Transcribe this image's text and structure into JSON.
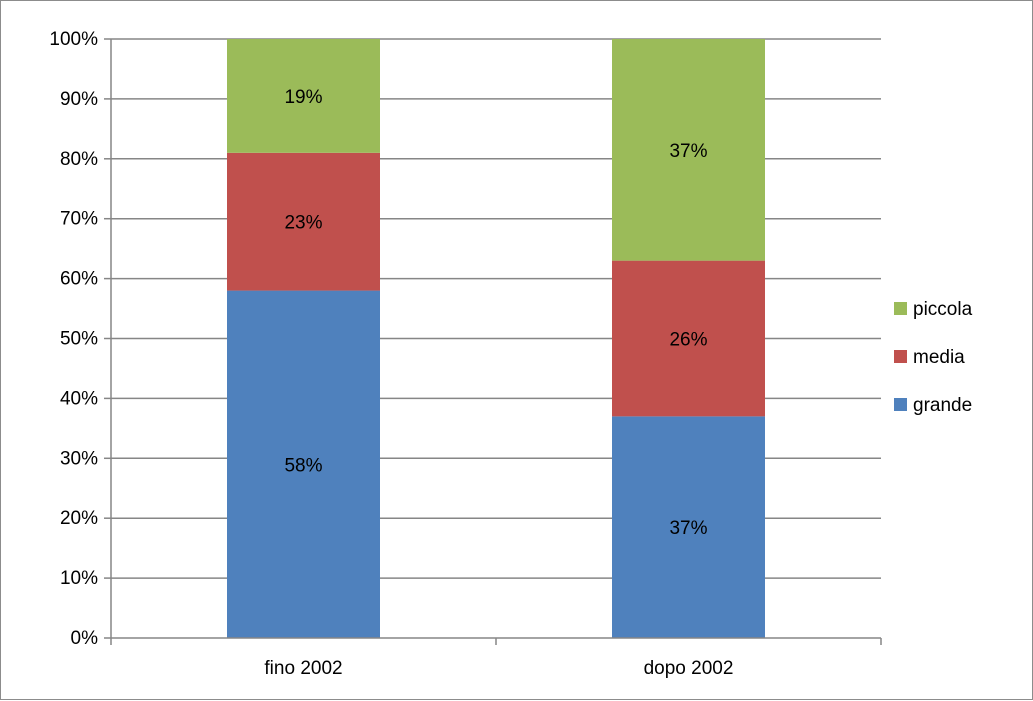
{
  "chart_data": {
    "type": "bar",
    "stacked": true,
    "percent_stacked": true,
    "categories": [
      "fino 2002",
      "dopo 2002"
    ],
    "series": [
      {
        "name": "grande",
        "values": [
          58,
          37
        ],
        "labels": [
          "58%",
          "37%"
        ],
        "color": "#4f81bd"
      },
      {
        "name": "media",
        "values": [
          23,
          26
        ],
        "labels": [
          "23%",
          "26%"
        ],
        "color": "#c0504d"
      },
      {
        "name": "piccola",
        "values": [
          19,
          37
        ],
        "labels": [
          "19%",
          "37%"
        ],
        "color": "#9bbb59"
      }
    ],
    "y_ticks": [
      "0%",
      "10%",
      "20%",
      "30%",
      "40%",
      "50%",
      "60%",
      "70%",
      "80%",
      "90%",
      "100%"
    ],
    "ylim": [
      0,
      100
    ],
    "grid": true,
    "legend": {
      "placement": "right",
      "order": [
        "piccola",
        "media",
        "grande"
      ]
    },
    "title": "",
    "xlabel": "",
    "ylabel": ""
  }
}
